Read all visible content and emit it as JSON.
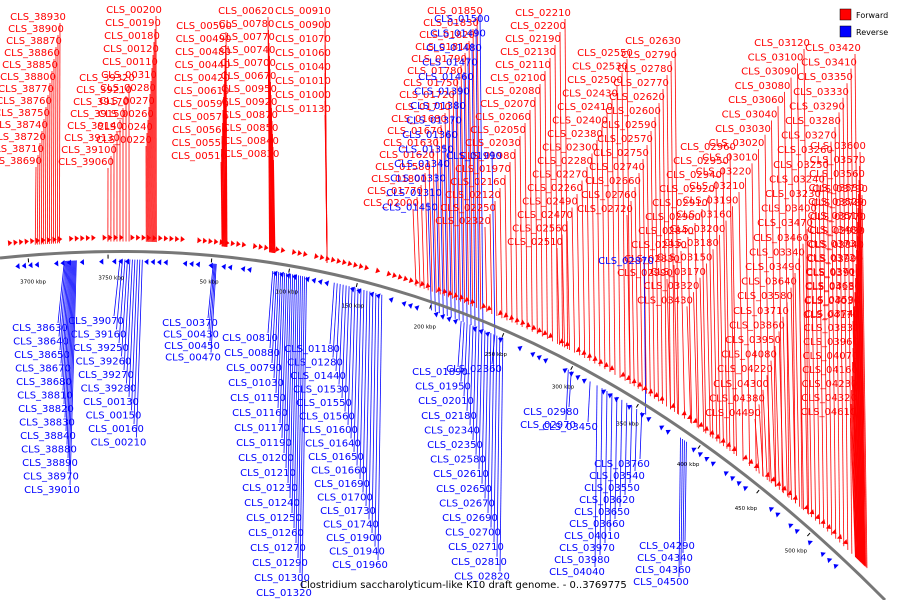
{
  "title": "Clostridium saccharolyticum-like K10 draft genome. - 0..3769775",
  "legend": [
    {
      "label": "Forward",
      "color": "#ff0000"
    },
    {
      "label": "Reverse",
      "color": "#0000ff"
    }
  ],
  "ticks": [
    "3700 kbp",
    "3750 kbp",
    "50 kbp",
    "100 kbp",
    "150 kbp",
    "200 kbp",
    "250 kbp",
    "300 kbp",
    "350 kbp",
    "400 kbp",
    "450 kbp",
    "500 kbp"
  ],
  "forward_columns": [
    {
      "labels": [
        "CLS_38930",
        "CLS_38900",
        "CLS_38870",
        "CLS_38860",
        "CLS_38850",
        "CLS_38800",
        "CLS_38770",
        "CLS_38760",
        "CLS_38750",
        "CLS_38740",
        "CLS_38720",
        "CLS_38710",
        "CLS_38690"
      ]
    },
    {
      "labels": [
        "CLS_39320",
        "CLS_39210",
        "CLS_39170",
        "CLS_39150",
        "CLS_39140",
        "CLS_39130",
        "CLS_39100",
        "CLS_39060"
      ]
    },
    {
      "labels": [
        "CLS_00200",
        "CLS_00190",
        "CLS_00180",
        "CLS_00120",
        "CLS_00110",
        "CLS_00310",
        "CLS_00280",
        "CLS_00270",
        "CLS_00260",
        "CLS_00240",
        "CLS_00220"
      ]
    },
    {
      "labels": [
        "CLS_00500",
        "CLS_00490",
        "CLS_00480",
        "CLS_00440",
        "CLS_00420",
        "CLS_00610",
        "CLS_00590",
        "CLS_00570",
        "CLS_00560",
        "CLS_00550",
        "CLS_00510"
      ]
    },
    {
      "labels": [
        "CLS_00620",
        "CLS_00780",
        "CLS_00770",
        "CLS_00740",
        "CLS_00700",
        "CLS_00670",
        "CLS_00950",
        "CLS_00920",
        "CLS_00870",
        "CLS_00850",
        "CLS_00840",
        "CLS_00830"
      ]
    },
    {
      "labels": [
        "CLS_00910",
        "CLS_00900",
        "CLS_01070",
        "CLS_01060",
        "CLS_01040",
        "CLS_01010",
        "CLS_01000",
        "CLS_01130"
      ]
    },
    {
      "labels": [
        "CLS_01850",
        "CLS_01830",
        "CLS_01820",
        "CLS_01810",
        "CLS_01790",
        "CLS_01780",
        "CLS_01750",
        "CLS_01720",
        "CLS_01710",
        "CLS_01680",
        "CLS_01670",
        "CLS_01630",
        "CLS_01620",
        "CLS_01580",
        "CLS_01800",
        "CLS_01770",
        "CLS_02000"
      ]
    },
    {
      "labels": [
        "CLS_02210",
        "CLS_02200",
        "CLS_02190",
        "CLS_02130",
        "CLS_02110",
        "CLS_02100",
        "CLS_02080",
        "CLS_02070",
        "CLS_02060",
        "CLS_02050",
        "CLS_02030",
        "CLS_01980",
        "CLS_01970",
        "CLS_02160",
        "CLS_02120",
        "CLS_02250",
        "CLS_02320"
      ]
    },
    {
      "labels": [
        "CLS_02550",
        "CLS_02530",
        "CLS_02500",
        "CLS_02430",
        "CLS_02410",
        "CLS_02400",
        "CLS_02380",
        "CLS_02300",
        "CLS_02280",
        "CLS_02270",
        "CLS_02260",
        "CLS_02490",
        "CLS_02470",
        "CLS_02560",
        "CLS_02510"
      ]
    },
    {
      "labels": [
        "CLS_02630",
        "CLS_02790",
        "CLS_02780",
        "CLS_02770",
        "CLS_02620",
        "CLS_02600",
        "CLS_02590",
        "CLS_02570",
        "CLS_02750",
        "CLS_02740",
        "CLS_02660",
        "CLS_02760",
        "CLS_02720"
      ]
    },
    {
      "labels": [
        "CLS_02960",
        "CLS_02950",
        "CLS_02940",
        "CLS_02920",
        "CLS_02910",
        "CLS_02900",
        "CLS_02840",
        "CLS_02930",
        "CLS_02830",
        "CLS_02990"
      ]
    },
    {
      "labels": [
        "CLS_03120",
        "CLS_03100",
        "CLS_03090",
        "CLS_03080",
        "CLS_03060",
        "CLS_03040",
        "CLS_03030",
        "CLS_03020",
        "CLS_03010",
        "CLS_03220",
        "CLS_03210",
        "CLS_03190",
        "CLS_03160",
        "CLS_03200",
        "CLS_03180",
        "CLS_03150",
        "CLS_03170",
        "CLS_03320",
        "CLS_03430"
      ]
    },
    {
      "labels": [
        "CLS_03420",
        "CLS_03410",
        "CLS_03350",
        "CLS_03330",
        "CLS_03290",
        "CLS_03280",
        "CLS_03270",
        "CLS_03260",
        "CLS_03250",
        "CLS_03240",
        "CLS_03230",
        "CLS_03400",
        "CLS_03470",
        "CLS_03460",
        "CLS_03340",
        "CLS_03490",
        "CLS_03640",
        "CLS_03580",
        "CLS_03710",
        "CLS_03860",
        "CLS_03950",
        "CLS_04080",
        "CLS_04220",
        "CLS_04300",
        "CLS_04380",
        "CLS_04490"
      ]
    },
    {
      "labels": [
        "CLS_03600",
        "CLS_03570",
        "CLS_03560",
        "CLS_03530",
        "CLS_03520",
        "CLS_03510",
        "CLS_03480",
        "CLS_03730",
        "CLS_03720",
        "CLS_03700",
        "CLS_03680",
        "CLS_03590",
        "CLS_03740",
        "CLS_03830",
        "CLS_03960",
        "CLS_04070",
        "CLS_04160",
        "CLS_04230",
        "CLS_04320",
        "CLS_04610"
      ]
    },
    {
      "labels": [
        "CLS_03790",
        "CLS_03780",
        "CLS_03770",
        "CLS_03930",
        "CLS_03840",
        "CLS_03990",
        "CLS_03910",
        "CLS_04130",
        "CLS_04030",
        "CLS_04170"
      ]
    }
  ],
  "reverse_columns": [
    {
      "labels": [
        "CLS_38630",
        "CLS_38640",
        "CLS_38650",
        "CLS_38670",
        "CLS_38680",
        "CLS_38810",
        "CLS_38820",
        "CLS_38830",
        "CLS_38840",
        "CLS_38880",
        "CLS_38890",
        "CLS_38970",
        "CLS_39010"
      ]
    },
    {
      "labels": [
        "CLS_39070",
        "CLS_39160",
        "CLS_39250",
        "CLS_39260",
        "CLS_39270",
        "CLS_39280",
        "CLS_00130",
        "CLS_00150",
        "CLS_00160",
        "CLS_00210"
      ]
    },
    {
      "labels": [
        "CLS_00370",
        "CLS_00430",
        "CLS_00450",
        "CLS_00470"
      ]
    },
    {
      "labels": [
        "CLS_00810",
        "CLS_00880",
        "CLS_00790",
        "CLS_01030",
        "CLS_01150",
        "CLS_01160",
        "CLS_01170",
        "CLS_01190",
        "CLS_01200",
        "CLS_01210",
        "CLS_01230",
        "CLS_01240",
        "CLS_01250",
        "CLS_01260",
        "CLS_01270",
        "CLS_01290",
        "CLS_01300",
        "CLS_01320"
      ]
    },
    {
      "labels": [
        "CLS_01180",
        "CLS_01280",
        "CLS_01440",
        "CLS_01530",
        "CLS_01550",
        "CLS_01560",
        "CLS_01600",
        "CLS_01640",
        "CLS_01650",
        "CLS_01660",
        "CLS_01690",
        "CLS_01700",
        "CLS_01730",
        "CLS_01740",
        "CLS_01900",
        "CLS_01940",
        "CLS_01960"
      ]
    },
    {
      "labels": [
        "CLS_01500",
        "CLS_01490",
        "CLS_01480",
        "CLS_01470",
        "CLS_01460",
        "CLS_01390",
        "CLS_01380",
        "CLS_01370",
        "CLS_01360",
        "CLS_01350",
        "CLS_01340",
        "CLS_01330",
        "CLS_01310",
        "CLS_01450"
      ]
    },
    {
      "labels": [
        "CLS_01890",
        "CLS_01950",
        "CLS_02010",
        "CLS_02180",
        "CLS_02340",
        "CLS_02350",
        "CLS_02580",
        "CLS_02610",
        "CLS_02650",
        "CLS_02670",
        "CLS_02690",
        "CLS_02700",
        "CLS_02710",
        "CLS_02810",
        "CLS_02820"
      ]
    },
    {
      "labels": [
        "CLS_01990",
        "CLS_02360",
        "CLS_02980",
        "CLS_02970",
        "CLS_02870",
        "CLS_03450"
      ]
    },
    {
      "labels": [
        "CLS_03760",
        "CLS_03540",
        "CLS_03550",
        "CLS_03620",
        "CLS_03650",
        "CLS_03660",
        "CLS_04010",
        "CLS_03970",
        "CLS_03980",
        "CLS_04040"
      ]
    },
    {
      "labels": [
        "CLS_04290",
        "CLS_04340",
        "CLS_04360",
        "CLS_04500"
      ]
    }
  ]
}
